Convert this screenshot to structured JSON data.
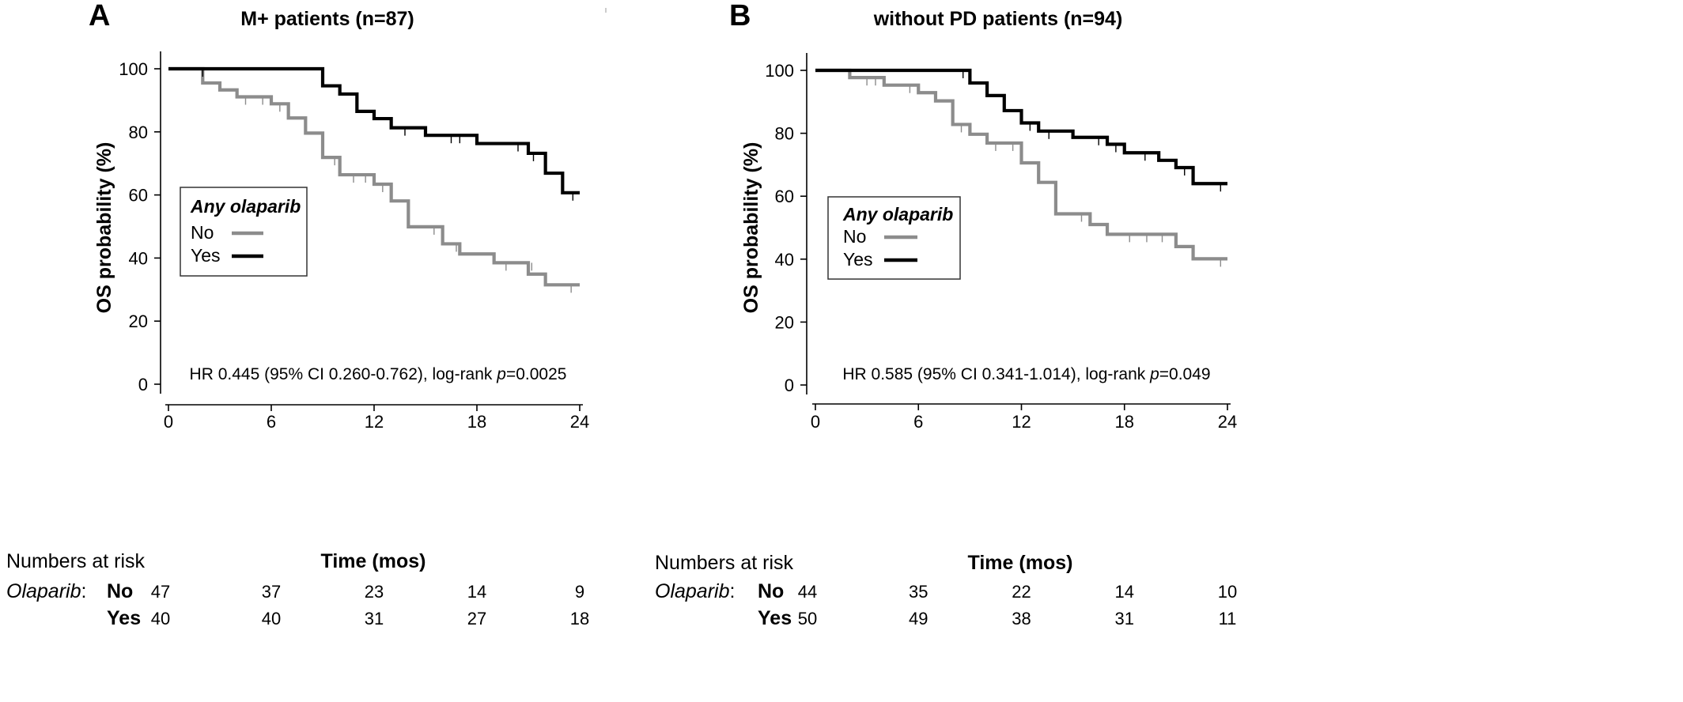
{
  "chart_data": [
    {
      "type": "line",
      "panel": "A",
      "title": "M+ patients (n=87)",
      "xlabel": "Time (mos)",
      "ylabel": "OS probability (%)",
      "xlim": [
        0,
        24
      ],
      "ylim": [
        0,
        100
      ],
      "xticks": [
        "0",
        "6",
        "12",
        "18",
        "24"
      ],
      "yticks": [
        "0",
        "20",
        "40",
        "60",
        "80",
        "100"
      ],
      "legend": {
        "title": "Any olaparib",
        "position": "middle-left"
      },
      "series": [
        {
          "name": "No",
          "color": "#8c8c8c",
          "x": [
            0,
            2,
            3,
            4,
            6,
            7,
            8,
            9,
            10,
            12,
            13,
            14,
            16,
            17,
            19,
            21,
            22,
            24
          ],
          "y": [
            100,
            95.5,
            93.3,
            91.1,
            88.9,
            84.4,
            79.6,
            71.9,
            66.4,
            63.4,
            58.1,
            49.9,
            44.5,
            41.3,
            38.5,
            34.9,
            31.5,
            31.5
          ],
          "censor_x": [
            4.5,
            5.5,
            6.5,
            9.7,
            10.8,
            11.5,
            12.5,
            15.5,
            16.8,
            19.7,
            21.2,
            23.5
          ],
          "censor_y": [
            91.1,
            91.1,
            88.9,
            71.9,
            66.4,
            66.4,
            63.4,
            49.9,
            44.5,
            38.5,
            38.5,
            31.5
          ]
        },
        {
          "name": "Yes",
          "color": "#000000",
          "x": [
            0,
            9,
            10,
            11,
            12,
            13,
            15,
            18,
            21,
            22,
            23,
            24
          ],
          "y": [
            100,
            94.6,
            92.0,
            86.5,
            84.2,
            81.3,
            78.9,
            76.3,
            73.2,
            66.9,
            60.7,
            60.7
          ],
          "censor_x": [
            2.0,
            13.8,
            16.5,
            17.0,
            20.4,
            21.3,
            23.6
          ],
          "censor_y": [
            100,
            81.3,
            78.9,
            78.9,
            76.3,
            73.2,
            60.7
          ]
        }
      ],
      "annotation": {
        "pre": "HR 0.445 (95% CI 0.260-0.762), log-rank ",
        "p": "p",
        "post": "=0.0025"
      },
      "risk_table": {
        "header": "Numbers at risk",
        "group_label": "Olaparib",
        "rows": [
          {
            "label": "No",
            "values": [
              "47",
              "37",
              "23",
              "14",
              "9"
            ]
          },
          {
            "label": "Yes",
            "values": [
              "40",
              "40",
              "31",
              "27",
              "18"
            ]
          }
        ]
      }
    },
    {
      "type": "line",
      "panel": "B",
      "title": "without PD patients (n=94)",
      "xlabel": "Time (mos)",
      "ylabel": "OS probability (%)",
      "xlim": [
        0,
        24
      ],
      "ylim": [
        0,
        100
      ],
      "xticks": [
        "0",
        "6",
        "12",
        "18",
        "24"
      ],
      "yticks": [
        "0",
        "20",
        "40",
        "60",
        "80",
        "100"
      ],
      "legend": {
        "title": "Any olaparib",
        "position": "middle-left"
      },
      "series": [
        {
          "name": "No",
          "color": "#8c8c8c",
          "x": [
            0,
            2,
            4,
            6,
            7,
            8,
            9,
            10,
            12,
            13,
            14,
            16,
            17,
            21,
            22,
            24
          ],
          "y": [
            100,
            97.7,
            95.3,
            92.9,
            90.3,
            82.8,
            79.7,
            76.9,
            70.6,
            64.4,
            54.4,
            51.0,
            47.9,
            44.0,
            40.1,
            40.1
          ],
          "censor_x": [
            3.0,
            3.5,
            5.5,
            8.5,
            10.5,
            11.5,
            15.5,
            18.3,
            19.3,
            20.2,
            23.6
          ],
          "censor_y": [
            97.7,
            97.7,
            95.3,
            82.8,
            76.9,
            76.9,
            54.4,
            47.9,
            47.9,
            47.9,
            40.1
          ]
        },
        {
          "name": "Yes",
          "color": "#000000",
          "x": [
            0,
            9,
            10,
            11,
            12,
            13,
            15,
            17,
            18,
            20,
            21,
            22,
            24
          ],
          "y": [
            100,
            96.0,
            92.0,
            87.2,
            83.3,
            80.7,
            78.7,
            76.5,
            73.8,
            71.4,
            69.1,
            64.0,
            64.0
          ],
          "censor_x": [
            8.6,
            12.5,
            13.6,
            16.5,
            17.5,
            19.2,
            21.5,
            23.6
          ],
          "censor_y": [
            100,
            83.3,
            80.7,
            78.7,
            76.5,
            73.8,
            69.1,
            64.0
          ]
        }
      ],
      "annotation": {
        "pre": "HR 0.585 (95% CI 0.341-1.014), log-rank ",
        "p": "p",
        "post": "=0.049"
      },
      "risk_table": {
        "header": "Numbers at risk",
        "group_label": "Olaparib",
        "rows": [
          {
            "label": "No",
            "values": [
              "44",
              "35",
              "22",
              "14",
              "10"
            ]
          },
          {
            "label": "Yes",
            "values": [
              "50",
              "49",
              "38",
              "31",
              "11"
            ]
          }
        ]
      }
    }
  ]
}
